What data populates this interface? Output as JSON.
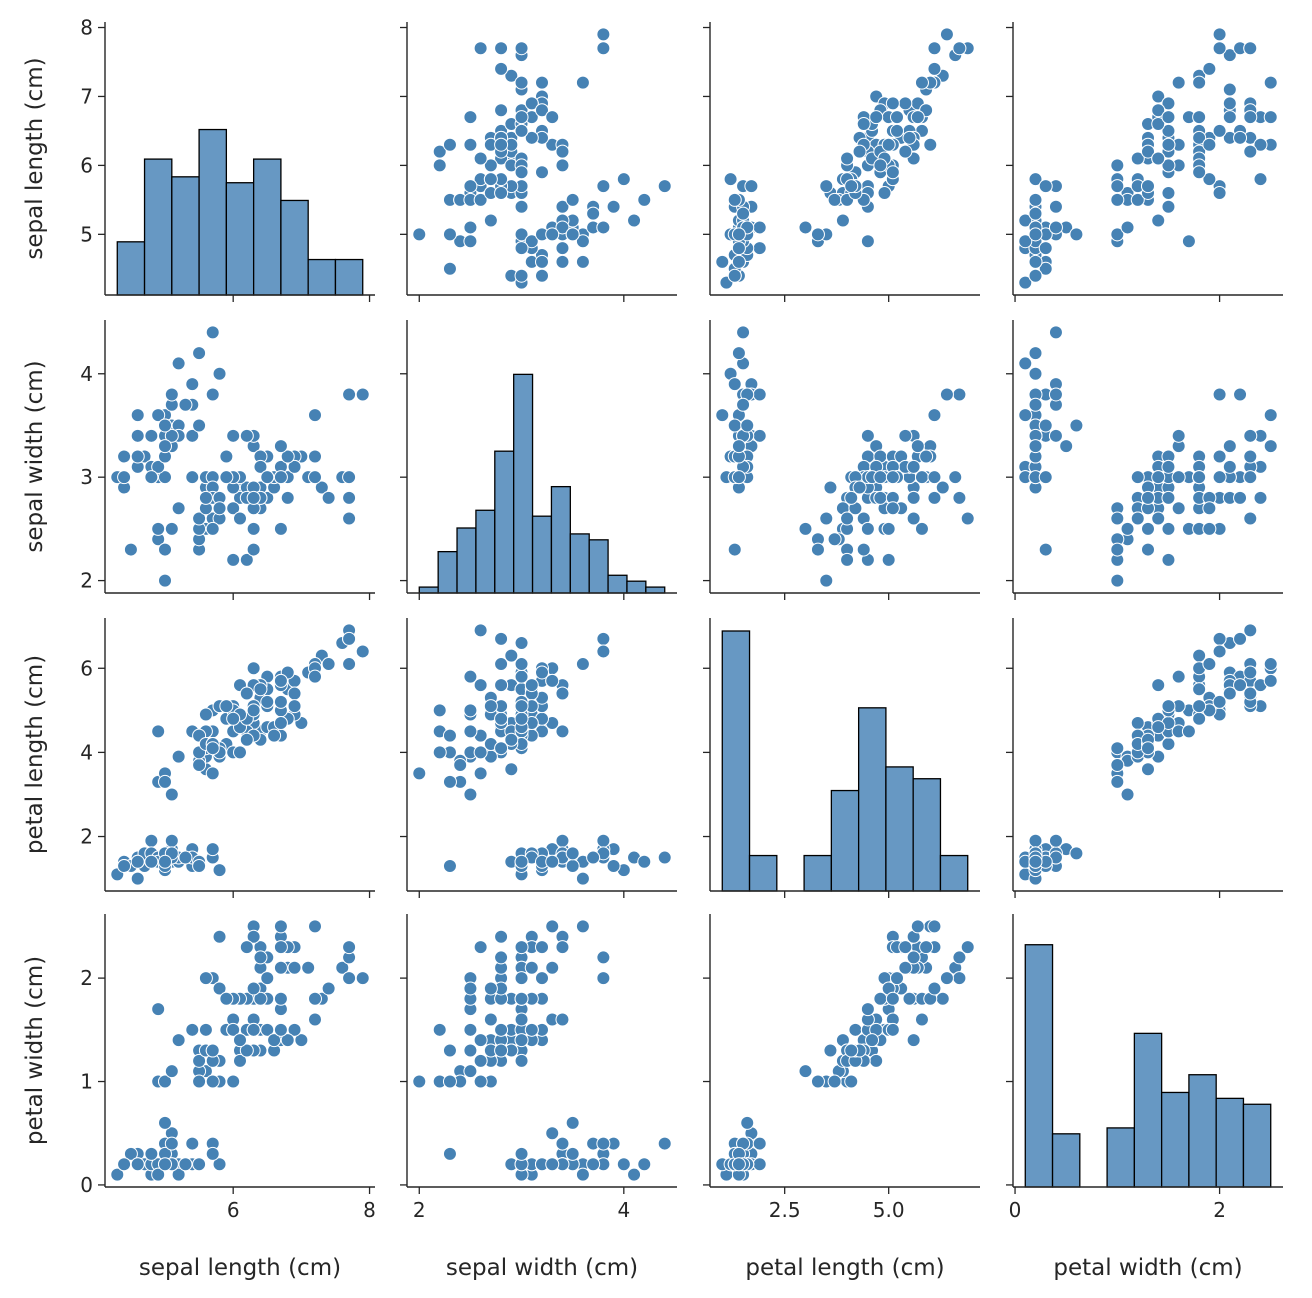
{
  "chart_data": {
    "type": "scatter",
    "kind": "pairplot",
    "diagonal": "histogram",
    "grid": false,
    "colors": {
      "points": "#4682b4",
      "point_edge": "#ffffff",
      "bars": "#6798c3",
      "bar_edge": "#000000"
    },
    "variables": [
      {
        "label": "sepal length (cm)",
        "lim": [
          4.12,
          8.08
        ],
        "yticks": [
          5,
          6,
          7,
          8
        ],
        "xticks": [
          6,
          8
        ],
        "xtick_labels": [
          "6",
          "8"
        ],
        "ytick_labels": [
          "5",
          "6",
          "7",
          "8"
        ]
      },
      {
        "label": "sepal width (cm)",
        "lim": [
          1.88,
          4.52
        ],
        "yticks": [
          2,
          3,
          4
        ],
        "xticks": [
          2,
          4
        ],
        "xtick_labels": [
          "2",
          "4"
        ],
        "ytick_labels": [
          "2",
          "3",
          "4"
        ]
      },
      {
        "label": "petal length (cm)",
        "lim": [
          0.705,
          7.195
        ],
        "yticks": [
          2,
          4,
          6
        ],
        "xticks": [
          2.5,
          5.0
        ],
        "xtick_labels": [
          "2.5",
          "5.0"
        ],
        "ytick_labels": [
          "2",
          "4",
          "6"
        ]
      },
      {
        "label": "petal width (cm)",
        "lim": [
          -0.02,
          2.62
        ],
        "yticks": [
          0,
          1,
          2
        ],
        "xticks": [
          0,
          2
        ],
        "xtick_labels": [
          "0",
          "2"
        ],
        "ytick_labels": [
          "0",
          "1",
          "2"
        ]
      }
    ],
    "data": {
      "sepal length (cm)": [
        5.1,
        4.9,
        4.7,
        4.6,
        5.0,
        5.4,
        4.6,
        5.0,
        4.4,
        4.9,
        5.4,
        4.8,
        4.8,
        4.3,
        5.8,
        5.7,
        5.4,
        5.1,
        5.7,
        5.1,
        5.4,
        5.1,
        4.6,
        5.1,
        4.8,
        5.0,
        5.0,
        5.2,
        5.2,
        4.7,
        4.8,
        5.4,
        5.2,
        5.5,
        4.9,
        5.0,
        5.5,
        4.9,
        4.4,
        5.1,
        5.0,
        4.5,
        4.4,
        5.0,
        5.1,
        4.8,
        5.1,
        4.6,
        5.3,
        5.0,
        7.0,
        6.4,
        6.9,
        5.5,
        6.5,
        5.7,
        6.3,
        4.9,
        6.6,
        5.2,
        5.0,
        5.9,
        6.0,
        6.1,
        5.6,
        6.7,
        5.6,
        5.8,
        6.2,
        5.6,
        5.9,
        6.1,
        6.3,
        6.1,
        6.4,
        6.6,
        6.8,
        6.7,
        6.0,
        5.7,
        5.5,
        5.5,
        5.8,
        6.0,
        5.4,
        6.0,
        6.7,
        6.3,
        5.6,
        5.5,
        5.5,
        6.1,
        5.8,
        5.0,
        5.6,
        5.7,
        5.7,
        6.2,
        5.1,
        5.7,
        6.3,
        5.8,
        7.1,
        6.3,
        6.5,
        7.6,
        4.9,
        7.3,
        6.7,
        7.2,
        6.5,
        6.4,
        6.8,
        5.7,
        5.8,
        6.4,
        6.5,
        7.7,
        7.7,
        6.0,
        6.9,
        5.6,
        7.7,
        6.3,
        6.7,
        7.2,
        6.2,
        6.1,
        6.4,
        7.2,
        7.4,
        7.9,
        6.4,
        6.3,
        6.1,
        7.7,
        6.3,
        6.4,
        6.0,
        6.9,
        6.7,
        6.9,
        5.8,
        6.8,
        6.7,
        6.7,
        6.3,
        6.5,
        6.2,
        5.9
      ],
      "sepal width (cm)": [
        3.5,
        3.0,
        3.2,
        3.1,
        3.6,
        3.9,
        3.4,
        3.4,
        2.9,
        3.1,
        3.7,
        3.4,
        3.0,
        3.0,
        4.0,
        4.4,
        3.9,
        3.5,
        3.8,
        3.8,
        3.4,
        3.7,
        3.6,
        3.3,
        3.4,
        3.0,
        3.4,
        3.5,
        3.4,
        3.2,
        3.1,
        3.4,
        4.1,
        4.2,
        3.1,
        3.2,
        3.5,
        3.6,
        3.0,
        3.4,
        3.5,
        2.3,
        3.2,
        3.5,
        3.8,
        3.0,
        3.8,
        3.2,
        3.7,
        3.3,
        3.2,
        3.2,
        3.1,
        2.3,
        2.8,
        2.8,
        3.3,
        2.4,
        2.9,
        2.7,
        2.0,
        3.0,
        2.2,
        2.9,
        2.9,
        3.1,
        3.0,
        2.7,
        2.2,
        2.5,
        3.2,
        2.8,
        2.5,
        2.8,
        2.9,
        3.0,
        2.8,
        3.0,
        2.9,
        2.6,
        2.4,
        2.4,
        2.7,
        2.7,
        3.0,
        3.4,
        3.1,
        2.3,
        3.0,
        2.5,
        2.6,
        3.0,
        2.6,
        2.3,
        2.7,
        3.0,
        2.9,
        2.9,
        2.5,
        2.8,
        3.3,
        2.7,
        3.0,
        2.9,
        3.0,
        3.0,
        2.5,
        2.9,
        2.5,
        3.6,
        3.2,
        2.7,
        3.0,
        2.5,
        2.8,
        3.2,
        3.0,
        3.8,
        2.6,
        2.2,
        3.2,
        2.8,
        2.8,
        2.7,
        3.3,
        3.2,
        2.8,
        3.0,
        2.8,
        3.0,
        2.8,
        3.8,
        2.8,
        2.8,
        2.6,
        3.0,
        3.4,
        3.1,
        3.0,
        3.1,
        3.1,
        3.1,
        2.7,
        3.2,
        3.3,
        3.0,
        2.5,
        3.0,
        3.4,
        3.0
      ],
      "petal length (cm)": [
        1.4,
        1.4,
        1.3,
        1.5,
        1.4,
        1.7,
        1.4,
        1.5,
        1.4,
        1.5,
        1.5,
        1.6,
        1.4,
        1.1,
        1.2,
        1.5,
        1.3,
        1.4,
        1.7,
        1.5,
        1.7,
        1.5,
        1.0,
        1.7,
        1.9,
        1.6,
        1.6,
        1.5,
        1.4,
        1.6,
        1.6,
        1.5,
        1.5,
        1.4,
        1.5,
        1.2,
        1.3,
        1.4,
        1.3,
        1.5,
        1.3,
        1.3,
        1.3,
        1.6,
        1.9,
        1.4,
        1.6,
        1.4,
        1.5,
        1.4,
        4.7,
        4.5,
        4.9,
        4.0,
        4.6,
        4.5,
        4.7,
        3.3,
        4.6,
        3.9,
        3.5,
        4.2,
        4.0,
        4.7,
        3.6,
        4.4,
        4.5,
        4.1,
        4.5,
        3.9,
        4.8,
        4.0,
        4.9,
        4.7,
        4.3,
        4.4,
        4.8,
        5.0,
        4.5,
        3.5,
        3.8,
        3.7,
        3.9,
        5.1,
        4.5,
        4.5,
        4.7,
        4.4,
        4.1,
        4.0,
        4.4,
        4.6,
        4.0,
        3.3,
        4.2,
        4.2,
        4.2,
        4.3,
        3.0,
        4.1,
        6.0,
        5.1,
        5.9,
        5.6,
        5.8,
        6.6,
        4.5,
        6.3,
        5.8,
        6.1,
        5.1,
        5.3,
        5.5,
        5.0,
        5.1,
        5.3,
        5.5,
        6.7,
        6.9,
        5.0,
        5.7,
        4.9,
        6.7,
        4.9,
        5.7,
        6.0,
        4.8,
        4.9,
        5.6,
        5.8,
        6.1,
        6.4,
        5.6,
        5.1,
        5.6,
        6.1,
        5.6,
        5.5,
        4.8,
        5.4,
        5.6,
        5.1,
        5.1,
        5.9,
        5.7,
        5.2,
        5.0,
        5.2,
        5.4,
        5.1
      ],
      "petal width (cm)": [
        0.2,
        0.2,
        0.2,
        0.2,
        0.2,
        0.4,
        0.3,
        0.2,
        0.2,
        0.1,
        0.2,
        0.2,
        0.1,
        0.1,
        0.2,
        0.4,
        0.4,
        0.3,
        0.3,
        0.3,
        0.2,
        0.4,
        0.2,
        0.5,
        0.2,
        0.2,
        0.4,
        0.2,
        0.2,
        0.2,
        0.2,
        0.4,
        0.1,
        0.2,
        0.2,
        0.2,
        0.2,
        0.1,
        0.2,
        0.2,
        0.3,
        0.3,
        0.2,
        0.6,
        0.4,
        0.3,
        0.2,
        0.2,
        0.2,
        0.2,
        1.4,
        1.5,
        1.5,
        1.3,
        1.5,
        1.3,
        1.6,
        1.0,
        1.3,
        1.4,
        1.0,
        1.5,
        1.0,
        1.4,
        1.3,
        1.4,
        1.5,
        1.0,
        1.5,
        1.1,
        1.8,
        1.3,
        1.5,
        1.2,
        1.3,
        1.4,
        1.4,
        1.7,
        1.5,
        1.0,
        1.1,
        1.0,
        1.2,
        1.6,
        1.5,
        1.6,
        1.5,
        1.3,
        1.3,
        1.3,
        1.2,
        1.4,
        1.2,
        1.0,
        1.3,
        1.2,
        1.3,
        1.3,
        1.1,
        1.3,
        2.5,
        1.9,
        2.1,
        1.8,
        2.2,
        2.1,
        1.7,
        1.8,
        1.8,
        2.5,
        2.0,
        1.9,
        2.1,
        2.0,
        2.4,
        2.3,
        1.8,
        2.2,
        2.3,
        1.5,
        2.3,
        2.0,
        2.0,
        1.8,
        2.1,
        1.8,
        1.8,
        1.8,
        2.1,
        1.6,
        1.9,
        2.0,
        2.2,
        1.5,
        1.4,
        2.3,
        2.4,
        1.8,
        1.8,
        2.1,
        2.4,
        2.3,
        1.9,
        2.3,
        2.5,
        2.3,
        1.9,
        2.0,
        2.3,
        1.8
      ]
    }
  }
}
